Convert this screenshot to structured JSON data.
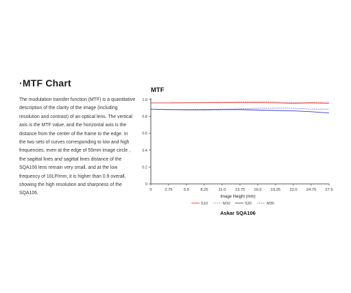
{
  "section": {
    "title": "·MTF Chart",
    "description": "The modulation transfer function (MTF) is a quantitative description of the clarity of the image (including resolution and contrast) of an optical lens. The vertical axis is the MTF value, and the horizontal axis is the distance from the center of the frame to the edge. In the two sets of curves corresponding to low and high frequencies, even at the edge of 55mm image circle , the sagittal lines and sagittal lines distance of the SQA106 lens remain very small, and at the low frequency of 10LP/mm, it is higher than 0.9 overall, showing the high resolution and sharpness of the SQA106."
  },
  "chart_data": {
    "type": "line",
    "title": "MTF",
    "subtitle": "Askar SQA106",
    "xlabel": "Image Height (mm)",
    "ylabel": "",
    "xlim": [
      0,
      27.5
    ],
    "ylim": [
      0,
      1.0
    ],
    "x_ticks": [
      "0",
      "2.75",
      "5.5",
      "8.25",
      "11.0",
      "13.75",
      "16.5",
      "19.25",
      "22.0",
      "24.75",
      "27.5"
    ],
    "y_ticks": [
      "0",
      "0.2",
      "0.4",
      "0.6",
      "0.8",
      "1.0"
    ],
    "grid": false,
    "legend_position": "bottom",
    "x": [
      0,
      2.75,
      5.5,
      8.25,
      11.0,
      13.75,
      16.5,
      19.25,
      22.0,
      24.75,
      27.5
    ],
    "series": [
      {
        "name": "S10",
        "color": "#e03a3a",
        "dash": "solid",
        "values": [
          0.96,
          0.96,
          0.961,
          0.962,
          0.962,
          0.962,
          0.962,
          0.96,
          0.955,
          0.96,
          0.955
        ]
      },
      {
        "name": "M10",
        "color": "#e03a3a",
        "dash": "dashed",
        "values": [
          0.96,
          0.961,
          0.963,
          0.965,
          0.967,
          0.97,
          0.972,
          0.97,
          0.965,
          0.965,
          0.968
        ]
      },
      {
        "name": "S30",
        "color": "#3a3acf",
        "dash": "solid",
        "values": [
          0.885,
          0.88,
          0.878,
          0.878,
          0.88,
          0.88,
          0.875,
          0.87,
          0.865,
          0.855,
          0.84
        ]
      },
      {
        "name": "M30",
        "color": "#3a3acf",
        "dash": "dashed",
        "values": [
          0.885,
          0.882,
          0.882,
          0.883,
          0.885,
          0.888,
          0.895,
          0.9,
          0.895,
          0.885,
          0.885
        ]
      }
    ]
  }
}
